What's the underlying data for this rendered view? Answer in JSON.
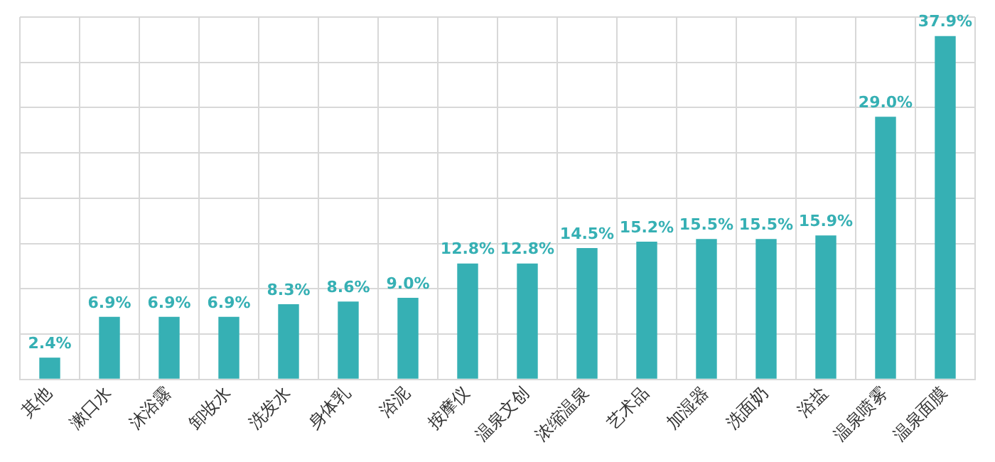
{
  "chart_data": {
    "type": "bar",
    "categories": [
      "其他",
      "漱口水",
      "沐浴露",
      "卸妆水",
      "洗发水",
      "身体乳",
      "浴泥",
      "按摩仪",
      "温泉文创",
      "浓缩温泉",
      "艺术品",
      "加湿器",
      "洗面奶",
      "浴盐",
      "温泉喷雾",
      "温泉面膜"
    ],
    "values": [
      2.4,
      6.9,
      6.9,
      6.9,
      8.3,
      8.6,
      9.0,
      12.8,
      12.8,
      14.5,
      15.2,
      15.5,
      15.5,
      15.9,
      29.0,
      37.9
    ],
    "value_labels": [
      "2.4%",
      "6.9%",
      "6.9%",
      "6.9%",
      "8.3%",
      "8.6%",
      "9.0%",
      "12.8%",
      "12.8%",
      "14.5%",
      "15.2%",
      "15.5%",
      "15.5%",
      "15.9%",
      "29.0%",
      "37.9%"
    ],
    "color": "#36b0b4",
    "ylim": [
      0,
      40
    ],
    "yticks": [
      {
        "value": 0,
        "label": null
      },
      {
        "value": 5,
        "label": null
      },
      {
        "value": 10,
        "label": null
      },
      {
        "value": 15,
        "label": null
      },
      {
        "value": 20,
        "label": null
      },
      {
        "value": 25,
        "label": null
      },
      {
        "value": 30,
        "label": null
      },
      {
        "value": 35,
        "label": null
      },
      {
        "value": 40,
        "label": null
      }
    ],
    "tick_labels": "x",
    "grid": true,
    "legend": false
  }
}
